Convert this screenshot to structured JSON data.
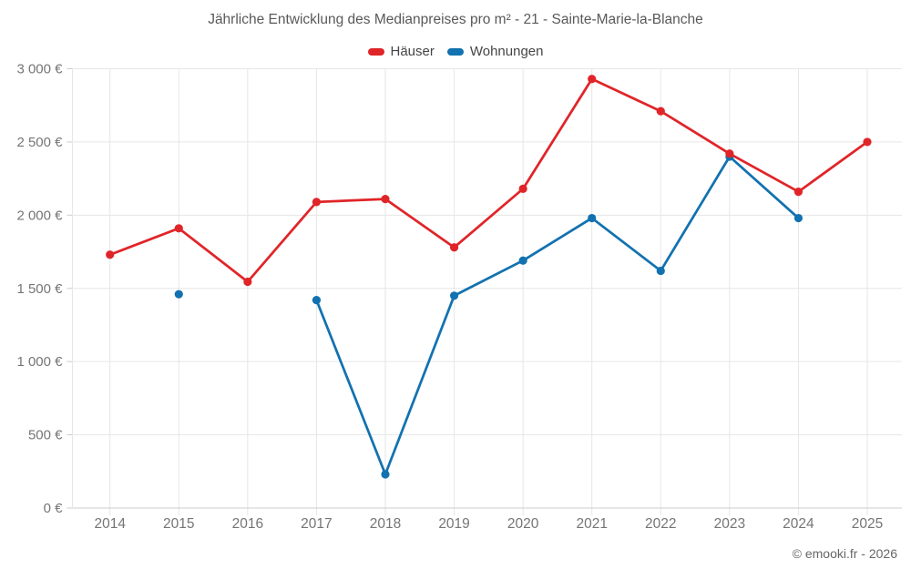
{
  "title": "Jährliche Entwicklung des Medianpreises pro m² - 21 - Sainte-Marie-la-Blanche",
  "footer": "© emooki.fr - 2026",
  "colors": {
    "haeuser": "#e02529",
    "wohnungen": "#1272b0",
    "grid": "#e6e6e6",
    "axis": "#cccccc",
    "tick_label": "#757575"
  },
  "chart_data": {
    "type": "line",
    "title": "Jährliche Entwicklung des Medianpreises pro m² - 21 - Sainte-Marie-la-Blanche",
    "categories": [
      "2014",
      "2015",
      "2016",
      "2017",
      "2018",
      "2019",
      "2020",
      "2021",
      "2022",
      "2023",
      "2024",
      "2025"
    ],
    "series": [
      {
        "name": "Häuser",
        "color": "#e02529",
        "values": [
          1730,
          1910,
          1545,
          2090,
          2110,
          1780,
          2180,
          2930,
          2710,
          2420,
          2160,
          2500
        ]
      },
      {
        "name": "Wohnungen",
        "color": "#1272b0",
        "values": [
          null,
          1460,
          null,
          1420,
          230,
          1450,
          1690,
          1980,
          1620,
          2400,
          1980,
          null
        ]
      }
    ],
    "xlabel": "",
    "ylabel": "",
    "ylim": [
      0,
      3000
    ],
    "ytick_step": 500,
    "ytick_suffix": " €",
    "grid": true,
    "legend_position": "top"
  }
}
